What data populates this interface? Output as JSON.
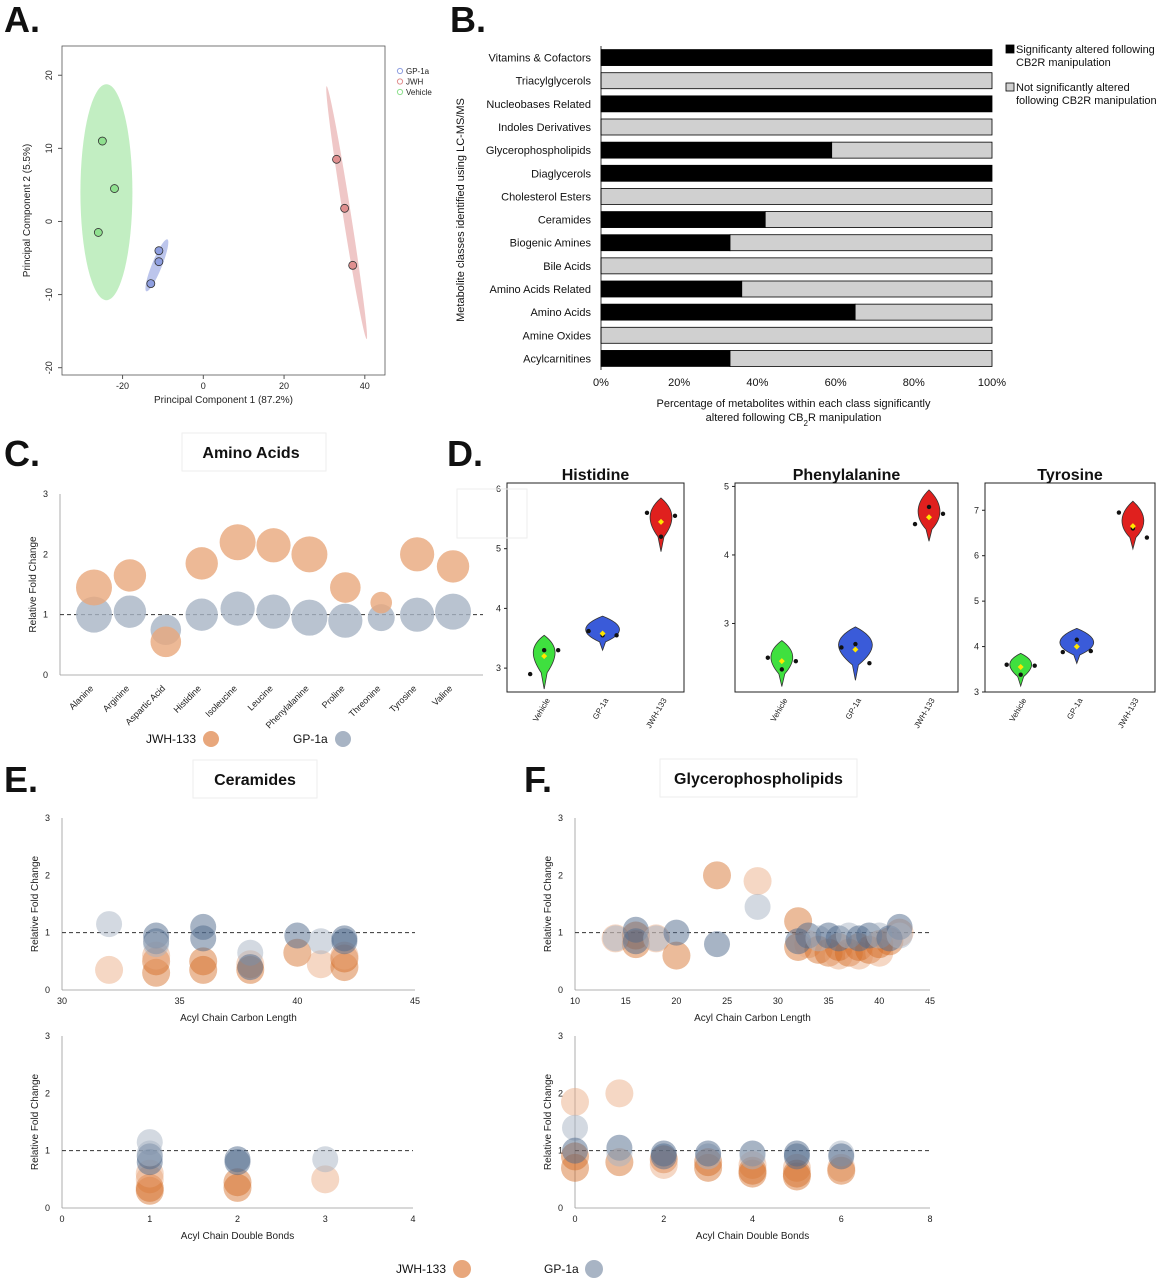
{
  "panels": {
    "a": {
      "letter": "A."
    },
    "b": {
      "letter": "B."
    },
    "c": {
      "letter": "C."
    },
    "d": {
      "letter": "D."
    },
    "e": {
      "letter": "E."
    },
    "f": {
      "letter": "F."
    }
  },
  "colors": {
    "jwh_bubble": "#e8a77c",
    "jwh_bubble_dark": "#d2691e",
    "gp1a_bubble": "#a8b4c4",
    "gp1a_bubble_dark": "#4f6a8c",
    "vehicle_violin": "#3fe03f",
    "gp1a_violin": "#3a5bd9",
    "jwh_violin": "#e0201e",
    "pca_vehicle": "#8fe08f",
    "pca_gp1a": "#8f9fe0",
    "pca_jwh": "#e08f8f",
    "bar_sig": "#000000",
    "bar_nonsig": "#d0d0d0"
  },
  "bottom_legend": {
    "jwh": "JWH-133",
    "gp1a": "GP-1a"
  },
  "chart_data": [
    {
      "id": "A",
      "type": "scatter",
      "title": "",
      "xlabel": "Principal Component 1 (87.2%)",
      "ylabel": "Principal Component 2 (5.5%)",
      "xlim": [
        -35,
        45
      ],
      "ylim": [
        -21,
        24
      ],
      "xticks": [
        -20,
        0,
        20,
        40
      ],
      "yticks": [
        -20,
        -10,
        0,
        10,
        20
      ],
      "legend": {
        "placement": "top-right",
        "entries": [
          "GP-1a",
          "JWH",
          "Vehicle"
        ]
      },
      "series": [
        {
          "name": "GP-1a",
          "x": [
            -11,
            -11,
            -13
          ],
          "y": [
            -4,
            -5.5,
            -8.5
          ]
        },
        {
          "name": "JWH",
          "x": [
            33,
            35,
            37
          ],
          "y": [
            8.5,
            1.8,
            -6
          ]
        },
        {
          "name": "Vehicle",
          "x": [
            -25,
            -22,
            -26
          ],
          "y": [
            11,
            4.5,
            -1.5
          ]
        }
      ]
    },
    {
      "id": "B",
      "type": "bar",
      "orientation": "horizontal-stacked",
      "xlabel_line1": "Percentage of metabolites within each class significantly",
      "xlabel_line2": "altered following CB",
      "xlabel_sub": "2",
      "xlabel_line2_end": "R manipulation",
      "ylabel": "Metabolite classes identified using LC-MS/MS",
      "xticks": [
        "0%",
        "20%",
        "40%",
        "60%",
        "80%",
        "100%"
      ],
      "categories": [
        "Vitamins & Cofactors",
        "Triacylglycerols",
        "Nucleobases Related",
        "Indoles Derivatives",
        "Glycerophospholipids",
        "Diaglycerols",
        "Cholesterol Esters",
        "Ceramides",
        "Biogenic Amines",
        "Bile Acids",
        "Amino Acids Related",
        "Amino Acids",
        "Amine Oxides",
        "Acylcarnitines"
      ],
      "series": [
        {
          "name": "Significanty altered following CB2R manipulation",
          "values": [
            100,
            0,
            100,
            0,
            59,
            100,
            0,
            42,
            33,
            0,
            36,
            65,
            0,
            33
          ]
        },
        {
          "name": "Not significantly altered following CB2R manipulation",
          "values": [
            0,
            100,
            0,
            100,
            41,
            0,
            100,
            58,
            67,
            100,
            64,
            35,
            100,
            67
          ]
        }
      ],
      "legend": {
        "placement": "right",
        "entries": [
          {
            "line1": "Significanty altered following",
            "line2": "CB2R manipulation"
          },
          {
            "line1": "Not significantly altered",
            "line2": "following CB2R manipulation"
          }
        ]
      }
    },
    {
      "id": "C",
      "type": "scatter",
      "subtype": "bubble",
      "title": "Amino Acids",
      "ylabel": "Relative Fold Change",
      "ylim": [
        0,
        3
      ],
      "yticks": [
        0,
        1,
        2,
        3
      ],
      "reference_line": 1,
      "categories": [
        "Alanine",
        "Arginine",
        "Aspartic Acid",
        "Histidine",
        "Isoleucine",
        "Leucine",
        "Phenylalanine",
        "Proline",
        "Threonine",
        "Tyrosine",
        "Valine"
      ],
      "series": [
        {
          "name": "JWH-133",
          "values": [
            1.45,
            1.65,
            0.55,
            1.85,
            2.2,
            2.15,
            2.0,
            1.45,
            1.2,
            2.0,
            1.8
          ],
          "sizes": [
            1.0,
            0.9,
            0.85,
            0.9,
            1.0,
            0.95,
            1.0,
            0.85,
            0.6,
            0.95,
            0.9
          ]
        },
        {
          "name": "GP-1a",
          "values": [
            1.0,
            1.05,
            0.75,
            1.0,
            1.1,
            1.05,
            0.95,
            0.9,
            0.95,
            1.0,
            1.05
          ],
          "sizes": [
            1.0,
            0.9,
            0.85,
            0.9,
            0.95,
            0.95,
            1.0,
            0.95,
            0.75,
            0.95,
            1.0
          ]
        }
      ],
      "legend": {
        "placement": "bottom",
        "entries": [
          "JWH-133",
          "GP-1a"
        ]
      }
    },
    {
      "id": "D",
      "type": "scatter",
      "subtype": "violin",
      "categories": [
        "Vehicle",
        "GP-1a",
        "JWH-133"
      ],
      "subplots": [
        {
          "title": "Histidine",
          "ylim": [
            2.6,
            6.1
          ],
          "yticks": [
            3,
            4,
            5,
            6
          ],
          "means": [
            3.2,
            3.58,
            5.45
          ],
          "points": [
            [
              2.9,
              3.3,
              3.3
            ],
            [
              3.62,
              3.55,
              3.55
            ],
            [
              5.6,
              5.2,
              5.55
            ]
          ]
        },
        {
          "title": "Phenylalanine",
          "ylim": [
            2.0,
            5.05
          ],
          "yticks": [
            3,
            4,
            5
          ],
          "means": [
            2.45,
            2.62,
            4.55
          ],
          "points": [
            [
              2.5,
              2.33,
              2.45
            ],
            [
              2.65,
              2.7,
              2.42
            ],
            [
              4.45,
              4.7,
              4.6
            ]
          ]
        },
        {
          "title": "Tyrosine",
          "ylim": [
            3.0,
            7.6
          ],
          "yticks": [
            3,
            4,
            5,
            6,
            7
          ],
          "means": [
            3.55,
            4.0,
            6.65
          ],
          "points": [
            [
              3.6,
              3.38,
              3.58
            ],
            [
              3.88,
              4.15,
              3.9
            ],
            [
              6.95,
              6.6,
              6.4
            ]
          ]
        }
      ]
    },
    {
      "id": "E-top",
      "type": "scatter",
      "subtype": "bubble",
      "title": "Ceramides",
      "xlabel": "Acyl Chain Carbon Length",
      "ylabel": "Relative Fold Change",
      "xlim": [
        30,
        45
      ],
      "ylim": [
        0,
        3
      ],
      "xticks": [
        30,
        35,
        40,
        45
      ],
      "yticks": [
        0,
        1,
        2,
        3
      ],
      "reference_line": 1,
      "series": [
        {
          "name": "JWH-133",
          "x": [
            32,
            34,
            34,
            34,
            36,
            36,
            38,
            38,
            40,
            41,
            42,
            42,
            42
          ],
          "y": [
            0.35,
            0.5,
            0.3,
            0.6,
            0.5,
            0.35,
            0.45,
            0.35,
            0.65,
            0.45,
            0.55,
            0.4,
            0.6
          ]
        },
        {
          "name": "GP-1a",
          "x": [
            32,
            34,
            34,
            34,
            36,
            36,
            38,
            38,
            40,
            41,
            42,
            42
          ],
          "y": [
            1.15,
            0.85,
            0.95,
            0.8,
            1.1,
            0.9,
            0.65,
            0.4,
            0.95,
            0.85,
            0.85,
            0.9
          ]
        }
      ]
    },
    {
      "id": "E-bottom",
      "type": "scatter",
      "subtype": "bubble",
      "xlabel": "Acyl Chain Double Bonds",
      "ylabel": "Relative Fold Change",
      "xlim": [
        0,
        4
      ],
      "ylim": [
        0,
        3
      ],
      "xticks": [
        0,
        1,
        2,
        3,
        4
      ],
      "yticks": [
        0,
        1,
        2,
        3
      ],
      "reference_line": 1,
      "series": [
        {
          "name": "JWH-133",
          "x": [
            1,
            1,
            1,
            1,
            2,
            2,
            3
          ],
          "y": [
            0.5,
            0.3,
            0.35,
            0.6,
            0.45,
            0.35,
            0.5
          ]
        },
        {
          "name": "GP-1a",
          "x": [
            1,
            1,
            1,
            1,
            2,
            2,
            3
          ],
          "y": [
            1.15,
            0.9,
            0.8,
            0.95,
            0.85,
            0.8,
            0.85
          ]
        }
      ]
    },
    {
      "id": "F-top",
      "type": "scatter",
      "subtype": "bubble",
      "title": "Glycerophospholipids",
      "xlabel": "Acyl Chain Carbon Length",
      "ylabel": "Relative Fold Change",
      "xlim": [
        10,
        45
      ],
      "ylim": [
        0,
        3
      ],
      "xticks": [
        10,
        15,
        20,
        25,
        30,
        35,
        40,
        45
      ],
      "yticks": [
        0,
        1,
        2,
        3
      ],
      "reference_line": 1,
      "series": [
        {
          "name": "JWH-133",
          "x": [
            14,
            16,
            16,
            18,
            20,
            24,
            28,
            32,
            32,
            33,
            34,
            35,
            36,
            36,
            37,
            38,
            38,
            39,
            40,
            40,
            41,
            42
          ],
          "y": [
            0.9,
            0.8,
            0.95,
            0.9,
            0.6,
            2.0,
            1.9,
            1.2,
            0.75,
            0.8,
            0.7,
            0.65,
            0.6,
            0.75,
            0.65,
            0.6,
            0.75,
            0.7,
            0.65,
            0.8,
            0.85,
            1.0
          ]
        },
        {
          "name": "GP-1a",
          "x": [
            14,
            16,
            16,
            18,
            20,
            24,
            28,
            32,
            33,
            34,
            35,
            36,
            37,
            38,
            39,
            40,
            41,
            42,
            42
          ],
          "y": [
            0.9,
            1.05,
            0.85,
            0.9,
            1.0,
            0.8,
            1.45,
            0.85,
            0.95,
            0.9,
            0.95,
            0.9,
            0.95,
            0.9,
            0.95,
            0.95,
            0.9,
            1.1,
            0.95
          ]
        }
      ]
    },
    {
      "id": "F-bottom",
      "type": "scatter",
      "subtype": "bubble",
      "xlabel": "Acyl Chain Double Bonds",
      "ylabel": "Relative Fold Change",
      "xlim": [
        0,
        8
      ],
      "ylim": [
        0,
        3
      ],
      "xticks": [
        0,
        2,
        4,
        6,
        8
      ],
      "yticks": [
        0,
        1,
        2,
        3
      ],
      "reference_line": 1,
      "series": [
        {
          "name": "JWH-133",
          "x": [
            0,
            0,
            0,
            1,
            1,
            2,
            2,
            3,
            3,
            4,
            4,
            4,
            5,
            5,
            5,
            6,
            6
          ],
          "y": [
            1.85,
            0.9,
            0.7,
            2.0,
            0.8,
            0.85,
            0.75,
            0.8,
            0.7,
            0.75,
            0.65,
            0.6,
            0.7,
            0.6,
            0.55,
            0.7,
            0.65
          ]
        },
        {
          "name": "GP-1a",
          "x": [
            0,
            0,
            1,
            1,
            2,
            2,
            3,
            3,
            4,
            4,
            5,
            5,
            6,
            6
          ],
          "y": [
            1.4,
            1.0,
            1.05,
            0.95,
            0.95,
            0.9,
            0.9,
            0.95,
            0.95,
            0.9,
            0.9,
            0.95,
            0.95,
            0.9
          ]
        }
      ]
    }
  ]
}
